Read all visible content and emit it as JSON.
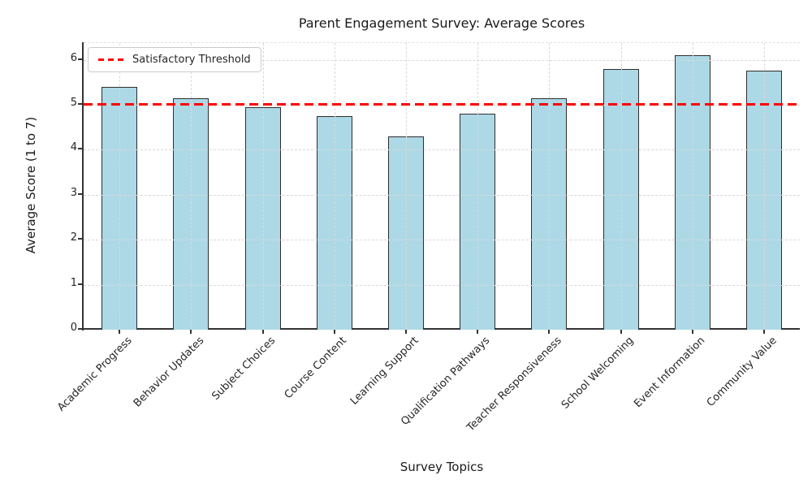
{
  "chart_data": {
    "type": "bar",
    "title": "Parent Engagement Survey: Average Scores",
    "xlabel": "Survey Topics",
    "ylabel": "Average Score (1 to 7)",
    "categories": [
      "Academic Progress",
      "Behavior Updates",
      "Subject Choices",
      "Course Content",
      "Learning Support",
      "Qualification Pathways",
      "Teacher Responsiveness",
      "School Welcoming",
      "Event Information",
      "Community Value"
    ],
    "values": [
      5.4,
      5.15,
      4.95,
      4.75,
      4.3,
      4.8,
      5.15,
      5.8,
      6.1,
      5.75
    ],
    "ylim": [
      0,
      6.37
    ],
    "yticks": [
      0,
      1,
      2,
      3,
      4,
      5,
      6
    ],
    "grid": true,
    "grid_style": "dashed",
    "legend_position": "upper left",
    "legend": {
      "entries": [
        {
          "label": "Satisfactory Threshold",
          "style": "dashed",
          "color": "#ff0000"
        }
      ]
    },
    "threshold": {
      "value": 5,
      "label": "Satisfactory Threshold"
    },
    "colors": {
      "bar_fill": "#add8e6",
      "bar_edge": "#2e2e2e",
      "threshold_line": "#ff0000",
      "grid": "#d9d9d9",
      "spine": "#333333",
      "text": "#262626",
      "background": "#ffffff"
    }
  }
}
